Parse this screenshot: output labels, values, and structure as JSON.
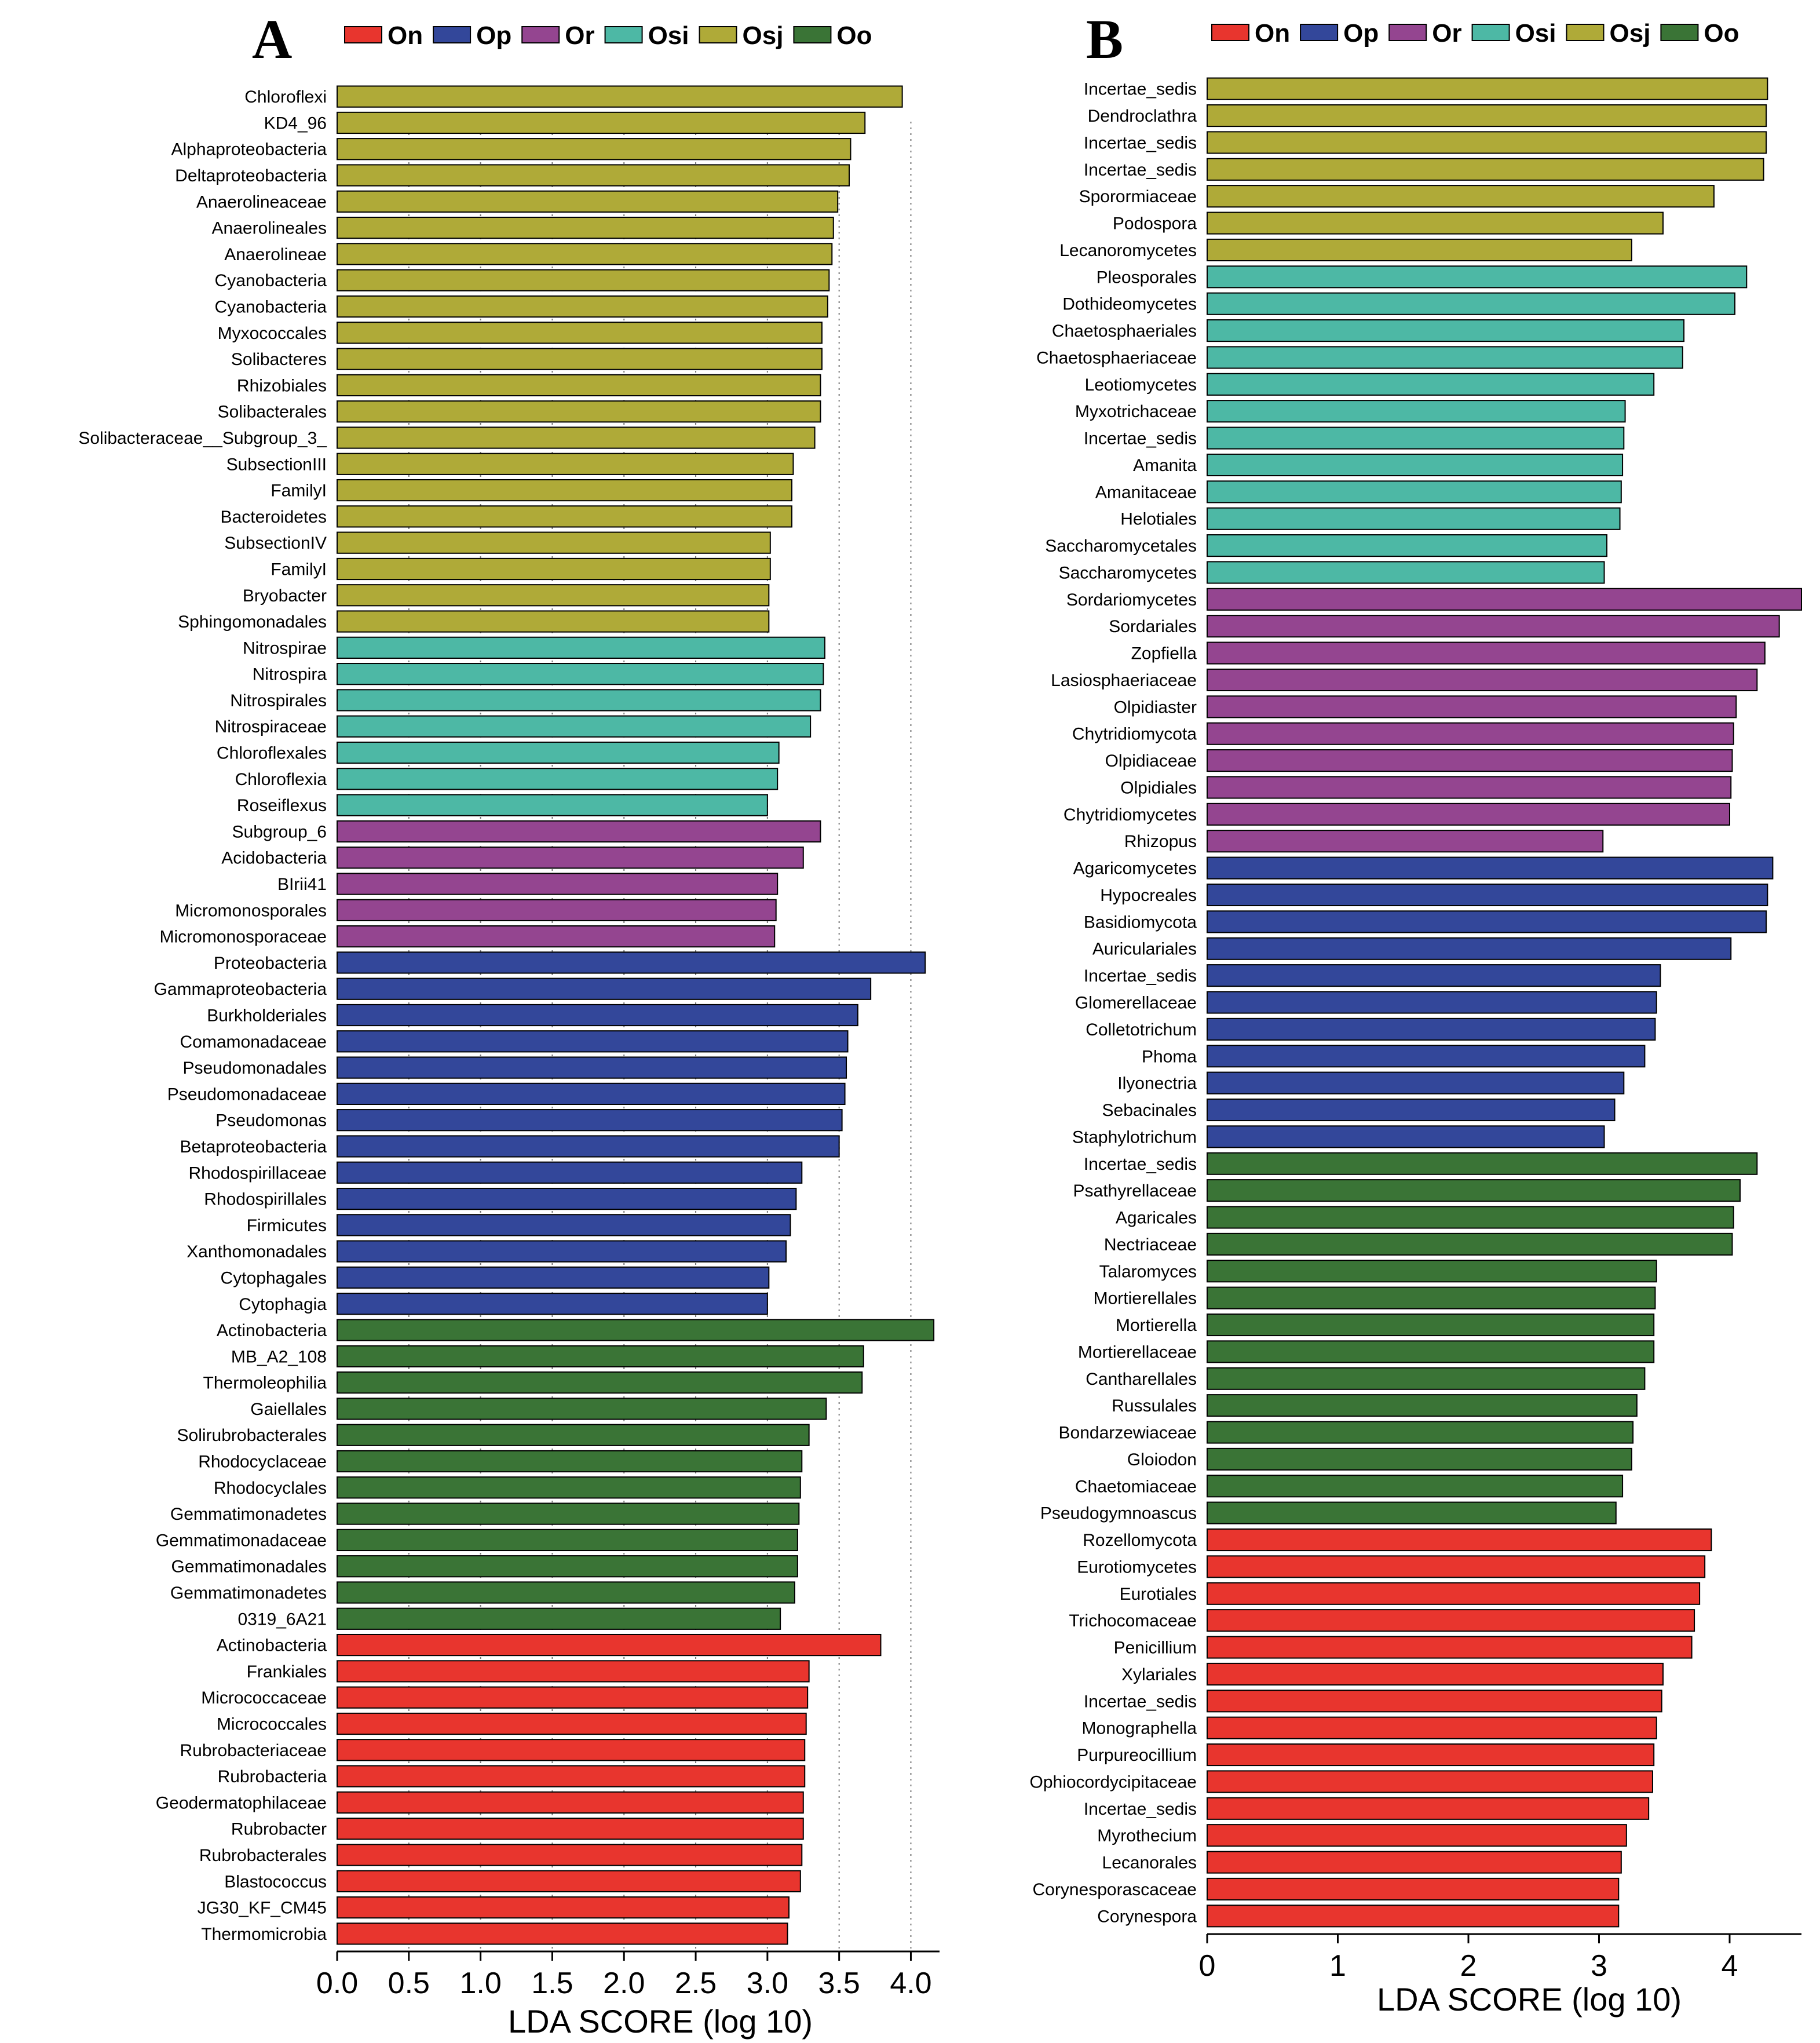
{
  "chart_data": [
    {
      "type": "bar",
      "orientation": "horizontal",
      "panel_label": "A",
      "title": "",
      "xlabel": "LDA SCORE (log 10)",
      "ylabel": "",
      "xlim": [
        0,
        4.2
      ],
      "xticks": [
        0.0,
        0.5,
        1.0,
        1.5,
        2.0,
        2.5,
        3.0,
        3.5,
        4.0
      ],
      "xtick_labels": [
        "0.0",
        "0.5",
        "1.0",
        "1.5",
        "2.0",
        "2.5",
        "3.0",
        "3.5",
        "4.0"
      ],
      "vertical_guides": [
        0.5,
        1.0,
        1.5,
        2.0,
        2.5,
        3.0,
        3.5,
        4.0
      ],
      "legend": [
        {
          "name": "On",
          "color": "#E8352E"
        },
        {
          "name": "Op",
          "color": "#33479A"
        },
        {
          "name": "Or",
          "color": "#944590"
        },
        {
          "name": "Osi",
          "color": "#4DB8A5"
        },
        {
          "name": "Osj",
          "color": "#AFAA38"
        },
        {
          "name": "Oo",
          "color": "#3A7436"
        }
      ],
      "legend_position": "top",
      "categories": [
        "Chloroflexi",
        "KD4_96",
        "Alphaproteobacteria",
        "Deltaproteobacteria",
        "Anaerolineaceae",
        "Anaerolineales",
        "Anaerolineae",
        "Cyanobacteria",
        "Cyanobacteria",
        "Myxococcales",
        "Solibacteres",
        "Rhizobiales",
        "Solibacterales",
        "Solibacteraceae__Subgroup_3_",
        "SubsectionIII",
        "FamilyI",
        "Bacteroidetes",
        "SubsectionIV",
        "FamilyI",
        "Bryobacter",
        "Sphingomonadales",
        "Nitrospirae",
        "Nitrospira",
        "Nitrospirales",
        "Nitrospiraceae",
        "Chloroflexales",
        "Chloroflexia",
        "Roseiflexus",
        "Subgroup_6",
        "Acidobacteria",
        "BIrii41",
        "Micromonosporales",
        "Micromonosporaceae",
        "Proteobacteria",
        "Gammaproteobacteria",
        "Burkholderiales",
        "Comamonadaceae",
        "Pseudomonadales",
        "Pseudomonadaceae",
        "Pseudomonas",
        "Betaproteobacteria",
        "Rhodospirillaceae",
        "Rhodospirillales",
        "Firmicutes",
        "Xanthomonadales",
        "Cytophagales",
        "Cytophagia",
        "Actinobacteria",
        "MB_A2_108",
        "Thermoleophilia",
        "Gaiellales",
        "Solirubrobacterales",
        "Rhodocyclaceae",
        "Rhodocyclales",
        "Gemmatimonadetes",
        "Gemmatimonadaceae",
        "Gemmatimonadales",
        "Gemmatimonadetes",
        "0319_6A21",
        "Actinobacteria",
        "Frankiales",
        "Micrococcaceae",
        "Micrococcales",
        "Rubrobacteriaceae",
        "Rubrobacteria",
        "Geodermatophilaceae",
        "Rubrobacter",
        "Rubrobacterales",
        "Blastococcus",
        "JG30_KF_CM45",
        "Thermomicrobia"
      ],
      "values": [
        3.94,
        3.68,
        3.58,
        3.57,
        3.49,
        3.46,
        3.45,
        3.43,
        3.42,
        3.38,
        3.38,
        3.37,
        3.37,
        3.33,
        3.18,
        3.17,
        3.17,
        3.02,
        3.02,
        3.01,
        3.01,
        3.4,
        3.39,
        3.37,
        3.3,
        3.08,
        3.07,
        3.0,
        3.37,
        3.25,
        3.07,
        3.06,
        3.05,
        4.1,
        3.72,
        3.63,
        3.56,
        3.55,
        3.54,
        3.52,
        3.5,
        3.24,
        3.2,
        3.16,
        3.13,
        3.01,
        3.0,
        4.16,
        3.67,
        3.66,
        3.41,
        3.29,
        3.24,
        3.23,
        3.22,
        3.21,
        3.21,
        3.19,
        3.09,
        3.79,
        3.29,
        3.28,
        3.27,
        3.26,
        3.26,
        3.25,
        3.25,
        3.24,
        3.23,
        3.15,
        3.14
      ],
      "groups": [
        "Osj",
        "Osj",
        "Osj",
        "Osj",
        "Osj",
        "Osj",
        "Osj",
        "Osj",
        "Osj",
        "Osj",
        "Osj",
        "Osj",
        "Osj",
        "Osj",
        "Osj",
        "Osj",
        "Osj",
        "Osj",
        "Osj",
        "Osj",
        "Osj",
        "Osi",
        "Osi",
        "Osi",
        "Osi",
        "Osi",
        "Osi",
        "Osi",
        "Or",
        "Or",
        "Or",
        "Or",
        "Or",
        "Op",
        "Op",
        "Op",
        "Op",
        "Op",
        "Op",
        "Op",
        "Op",
        "Op",
        "Op",
        "Op",
        "Op",
        "Op",
        "Op",
        "Oo",
        "Oo",
        "Oo",
        "Oo",
        "Oo",
        "Oo",
        "Oo",
        "Oo",
        "Oo",
        "Oo",
        "Oo",
        "Oo",
        "On",
        "On",
        "On",
        "On",
        "On",
        "On",
        "On",
        "On",
        "On",
        "On",
        "On",
        "On"
      ]
    },
    {
      "type": "bar",
      "orientation": "horizontal",
      "panel_label": "B",
      "title": "",
      "xlabel": "LDA SCORE (log 10)",
      "ylabel": "",
      "xlim": [
        0,
        4.55
      ],
      "xticks": [
        0,
        1,
        2,
        3,
        4
      ],
      "xtick_labels": [
        "0",
        "1",
        "2",
        "3",
        "4"
      ],
      "vertical_guides": [],
      "legend": [
        {
          "name": "On",
          "color": "#E8352E"
        },
        {
          "name": "Op",
          "color": "#33479A"
        },
        {
          "name": "Or",
          "color": "#944590"
        },
        {
          "name": "Osi",
          "color": "#4DB8A5"
        },
        {
          "name": "Osj",
          "color": "#AFAA38"
        },
        {
          "name": "Oo",
          "color": "#3A7436"
        }
      ],
      "legend_position": "top",
      "categories": [
        "Incertae_sedis",
        "Dendroclathra",
        "Incertae_sedis",
        "Incertae_sedis",
        "Sporormiaceae",
        "Podospora",
        "Lecanoromycetes",
        "Pleosporales",
        "Dothideomycetes",
        "Chaetosphaeriales",
        "Chaetosphaeriaceae",
        "Leotiomycetes",
        "Myxotrichaceae",
        "Incertae_sedis",
        "Amanita",
        "Amanitaceae",
        "Helotiales",
        "Saccharomycetales",
        "Saccharomycetes",
        "Sordariomycetes",
        "Sordariales",
        "Zopfiella",
        "Lasiosphaeriaceae",
        "Olpidiaster",
        "Chytridiomycota",
        "Olpidiaceae",
        "Olpidiales",
        "Chytridiomycetes",
        "Rhizopus",
        "Agaricomycetes",
        "Hypocreales",
        "Basidiomycota",
        "Auriculariales",
        "Incertae_sedis",
        "Glomerellaceae",
        "Colletotrichum",
        "Phoma",
        "Ilyonectria",
        "Sebacinales",
        "Staphylotrichum",
        "Incertae_sedis",
        "Psathyrellaceae",
        "Agaricales",
        "Nectriaceae",
        "Talaromyces",
        "Mortierellales",
        "Mortierella",
        "Mortierellaceae",
        "Cantharellales",
        "Russulales",
        "Bondarzewiaceae",
        "Gloiodon",
        "Chaetomiaceae",
        "Pseudogymnoascus",
        "Rozellomycota",
        "Eurotiomycetes",
        "Eurotiales",
        "Trichocomaceae",
        "Penicillium",
        "Xylariales",
        "Incertae_sedis",
        "Monographella",
        "Purpureocillium",
        "Ophiocordycipitaceae",
        "Incertae_sedis",
        "Myrothecium",
        "Lecanorales",
        "Corynesporascaceae",
        "Corynespora"
      ],
      "values": [
        4.29,
        4.28,
        4.28,
        4.26,
        3.88,
        3.49,
        3.25,
        4.13,
        4.04,
        3.65,
        3.64,
        3.42,
        3.2,
        3.19,
        3.18,
        3.17,
        3.16,
        3.06,
        3.04,
        4.55,
        4.38,
        4.27,
        4.21,
        4.05,
        4.03,
        4.02,
        4.01,
        4.0,
        3.03,
        4.33,
        4.29,
        4.28,
        4.01,
        3.47,
        3.44,
        3.43,
        3.35,
        3.19,
        3.12,
        3.04,
        4.21,
        4.08,
        4.03,
        4.02,
        3.44,
        3.43,
        3.42,
        3.42,
        3.35,
        3.29,
        3.26,
        3.25,
        3.18,
        3.13,
        3.86,
        3.81,
        3.77,
        3.73,
        3.71,
        3.49,
        3.48,
        3.44,
        3.42,
        3.41,
        3.38,
        3.21,
        3.17,
        3.15,
        3.15
      ],
      "groups": [
        "Osj",
        "Osj",
        "Osj",
        "Osj",
        "Osj",
        "Osj",
        "Osj",
        "Osi",
        "Osi",
        "Osi",
        "Osi",
        "Osi",
        "Osi",
        "Osi",
        "Osi",
        "Osi",
        "Osi",
        "Osi",
        "Osi",
        "Or",
        "Or",
        "Or",
        "Or",
        "Or",
        "Or",
        "Or",
        "Or",
        "Or",
        "Or",
        "Op",
        "Op",
        "Op",
        "Op",
        "Op",
        "Op",
        "Op",
        "Op",
        "Op",
        "Op",
        "Op",
        "Oo",
        "Oo",
        "Oo",
        "Oo",
        "Oo",
        "Oo",
        "Oo",
        "Oo",
        "Oo",
        "Oo",
        "Oo",
        "Oo",
        "Oo",
        "Oo",
        "On",
        "On",
        "On",
        "On",
        "On",
        "On",
        "On",
        "On",
        "On",
        "On",
        "On",
        "On",
        "On",
        "On",
        "On"
      ]
    }
  ]
}
